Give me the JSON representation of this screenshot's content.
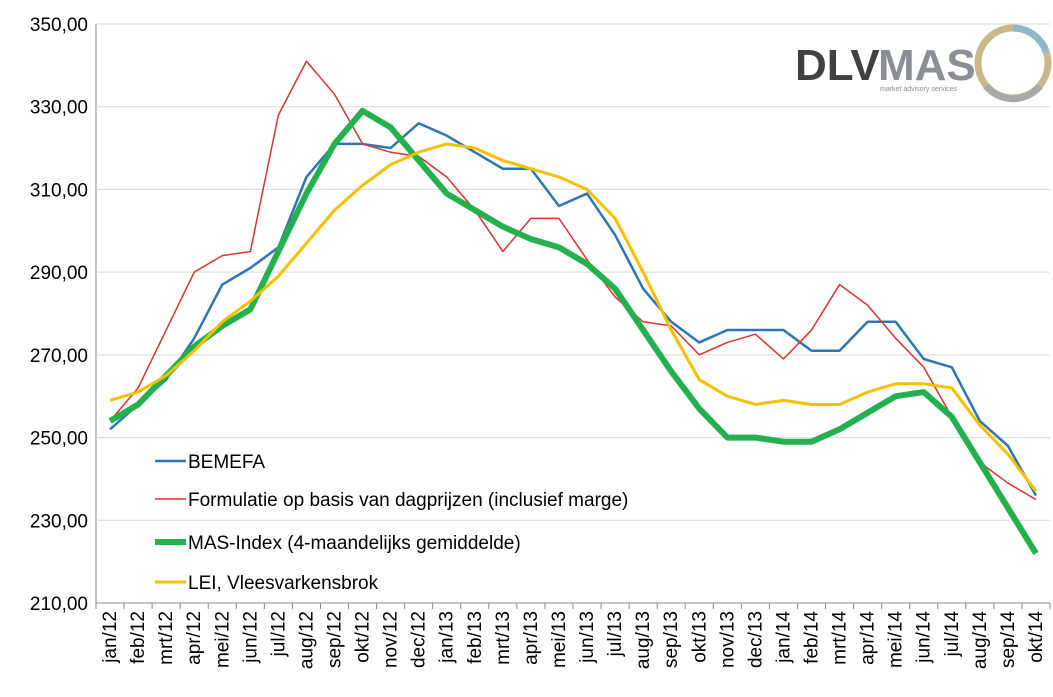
{
  "logo": {
    "text_a": "DLV",
    "text_b": "MAS",
    "subtitle": "market advisory services"
  },
  "chart_data": {
    "type": "line",
    "categories": [
      "jan/12",
      "feb/12",
      "mrt/12",
      "apr/12",
      "mei/12",
      "jun/12",
      "jul/12",
      "aug/12",
      "sep/12",
      "okt/12",
      "nov/12",
      "dec/12",
      "jan/13",
      "feb/13",
      "mrt/13",
      "apr/13",
      "mei/13",
      "jun/13",
      "jul/13",
      "aug/13",
      "sep/13",
      "okt/13",
      "nov/13",
      "dec/13",
      "jan/14",
      "feb/14",
      "mrt/14",
      "apr/14",
      "mei/14",
      "jun/14",
      "jul/14",
      "aug/14",
      "sep/14",
      "okt/14"
    ],
    "ylim": [
      210,
      350
    ],
    "yticks": [
      {
        "value": 210,
        "label": "210,00"
      },
      {
        "value": 230,
        "label": "230,00"
      },
      {
        "value": 250,
        "label": "250,00"
      },
      {
        "value": 270,
        "label": "270,00"
      },
      {
        "value": 290,
        "label": "290,00"
      },
      {
        "value": 310,
        "label": "310,00"
      },
      {
        "value": 330,
        "label": "330,00"
      },
      {
        "value": 350,
        "label": "350,00"
      }
    ],
    "grid": true,
    "legend": "lower-left",
    "series": [
      {
        "name": "BEMEFA",
        "color": "#2e75b6",
        "width": 2.5,
        "values": [
          252,
          258,
          264,
          274,
          287,
          291,
          296,
          313,
          321,
          321,
          320,
          326,
          323,
          319,
          315,
          315,
          306,
          309,
          299,
          286,
          278,
          273,
          276,
          276,
          276,
          271,
          271,
          278,
          278,
          269,
          267,
          254,
          248,
          236
        ]
      },
      {
        "name": "Formulatie op basis van dagprijzen (inclusief marge)",
        "color": "#e0312b",
        "width": 1.5,
        "values": [
          254,
          262,
          276,
          290,
          294,
          295,
          328,
          341,
          333,
          321,
          319,
          318,
          313,
          305,
          295,
          303,
          303,
          293,
          284,
          278,
          277,
          270,
          273,
          275,
          269,
          276,
          287,
          282,
          274,
          267,
          255,
          244,
          239,
          235
        ]
      },
      {
        "name": "MAS-Index (4-maandelijks gemiddelde)",
        "color": "#22b14c",
        "width": 6,
        "values": [
          254,
          258,
          265,
          272,
          277,
          281,
          295,
          309,
          321,
          329,
          325,
          317,
          309,
          305,
          301,
          298,
          296,
          292,
          286,
          276,
          266,
          257,
          250,
          250,
          249,
          249,
          252,
          256,
          260,
          261,
          255,
          244,
          233,
          222
        ]
      },
      {
        "name": "LEI, Vleesvarkensbrok",
        "color": "#f5c000",
        "width": 3,
        "values": [
          259,
          261,
          265,
          271,
          278,
          283,
          289,
          297,
          305,
          311,
          316,
          319,
          321,
          320,
          317,
          315,
          313,
          310,
          303,
          290,
          276,
          264,
          260,
          258,
          259,
          258,
          258,
          261,
          263,
          263,
          262,
          253,
          246,
          237
        ]
      }
    ]
  }
}
